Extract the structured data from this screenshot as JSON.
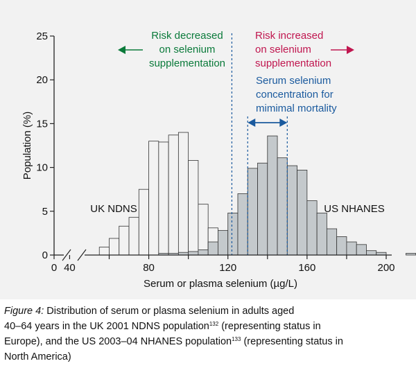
{
  "chart_data": {
    "type": "bar",
    "xlabel": "Serum or plasma selenium (µg/L)",
    "ylabel": "Population (%)",
    "xlim": [
      0,
      200
    ],
    "ylim": [
      0,
      25
    ],
    "axis_break": true,
    "x_ticks": [
      0,
      40,
      60,
      80,
      100,
      120,
      140,
      160,
      180,
      200
    ],
    "x_tick_labels": [
      "0",
      "40",
      "",
      "80",
      "",
      "120",
      "",
      "160",
      "",
      "200"
    ],
    "y_ticks": [
      0,
      5,
      10,
      15,
      20,
      25
    ],
    "bin_width": 5,
    "grid": false,
    "legend": "none",
    "series": [
      {
        "name": "UK NDNS",
        "color": "#f2f2f2",
        "bins": [
          {
            "start": 55,
            "value": 0.9
          },
          {
            "start": 60,
            "value": 1.9
          },
          {
            "start": 65,
            "value": 3.3
          },
          {
            "start": 70,
            "value": 4.3
          },
          {
            "start": 75,
            "value": 7.5
          },
          {
            "start": 80,
            "value": 13.0
          },
          {
            "start": 85,
            "value": 12.9
          },
          {
            "start": 90,
            "value": 13.7
          },
          {
            "start": 95,
            "value": 14.0
          },
          {
            "start": 100,
            "value": 10.8
          },
          {
            "start": 105,
            "value": 5.8
          },
          {
            "start": 110,
            "value": 3.1
          },
          {
            "start": 115,
            "value": 1.1
          },
          {
            "start": 120,
            "value": 0.4
          }
        ]
      },
      {
        "name": "US NHANES",
        "color": "#c4c9cc",
        "bins": [
          {
            "start": 85,
            "value": 0.2
          },
          {
            "start": 90,
            "value": 0.2
          },
          {
            "start": 95,
            "value": 0.3
          },
          {
            "start": 100,
            "value": 0.4
          },
          {
            "start": 105,
            "value": 0.6
          },
          {
            "start": 110,
            "value": 1.5
          },
          {
            "start": 115,
            "value": 2.8
          },
          {
            "start": 120,
            "value": 4.8
          },
          {
            "start": 125,
            "value": 7.0
          },
          {
            "start": 130,
            "value": 9.9
          },
          {
            "start": 135,
            "value": 10.5
          },
          {
            "start": 140,
            "value": 13.6
          },
          {
            "start": 145,
            "value": 11.1
          },
          {
            "start": 150,
            "value": 10.2
          },
          {
            "start": 155,
            "value": 9.7
          },
          {
            "start": 160,
            "value": 6.2
          },
          {
            "start": 165,
            "value": 4.8
          },
          {
            "start": 170,
            "value": 3.0
          },
          {
            "start": 175,
            "value": 2.1
          },
          {
            "start": 180,
            "value": 1.5
          },
          {
            "start": 185,
            "value": 1.2
          },
          {
            "start": 190,
            "value": 0.5
          },
          {
            "start": 195,
            "value": 0.3
          },
          {
            "start": 210,
            "value": 0.2
          }
        ]
      }
    ],
    "series_labels": [
      "UK NDNS",
      "US NHANES"
    ],
    "reference_lines": [
      122,
      130,
      150
    ],
    "optimal_range": [
      130,
      150
    ],
    "annotations": {
      "decreased": [
        "Risk decreased",
        "on selenium",
        "supplementation"
      ],
      "increased": [
        "Risk increased",
        "on selenium",
        "supplementation"
      ],
      "mortality": [
        "Serum selenium",
        "concentration for",
        "mimimal mortality"
      ]
    }
  },
  "colors": {
    "background": "#f2f2f2",
    "axis": "#222222",
    "decreased_arrow": "#0a7a3a",
    "increased_arrow": "#c0164f",
    "mortality_blue": "#1a5a9e"
  },
  "caption": {
    "lead": "Figure 4:",
    "line1": " Distribution of serum or plasma selenium in adults aged",
    "line2_a": "40–64 years in the UK 2001 NDNS population",
    "ref1": "132",
    "line2_b": " (representing status in",
    "line3_a": "Europe), and the US 2003–04 NHANES population",
    "ref2": "133",
    "line3_b": " (representing status in",
    "line4": "North America)"
  }
}
